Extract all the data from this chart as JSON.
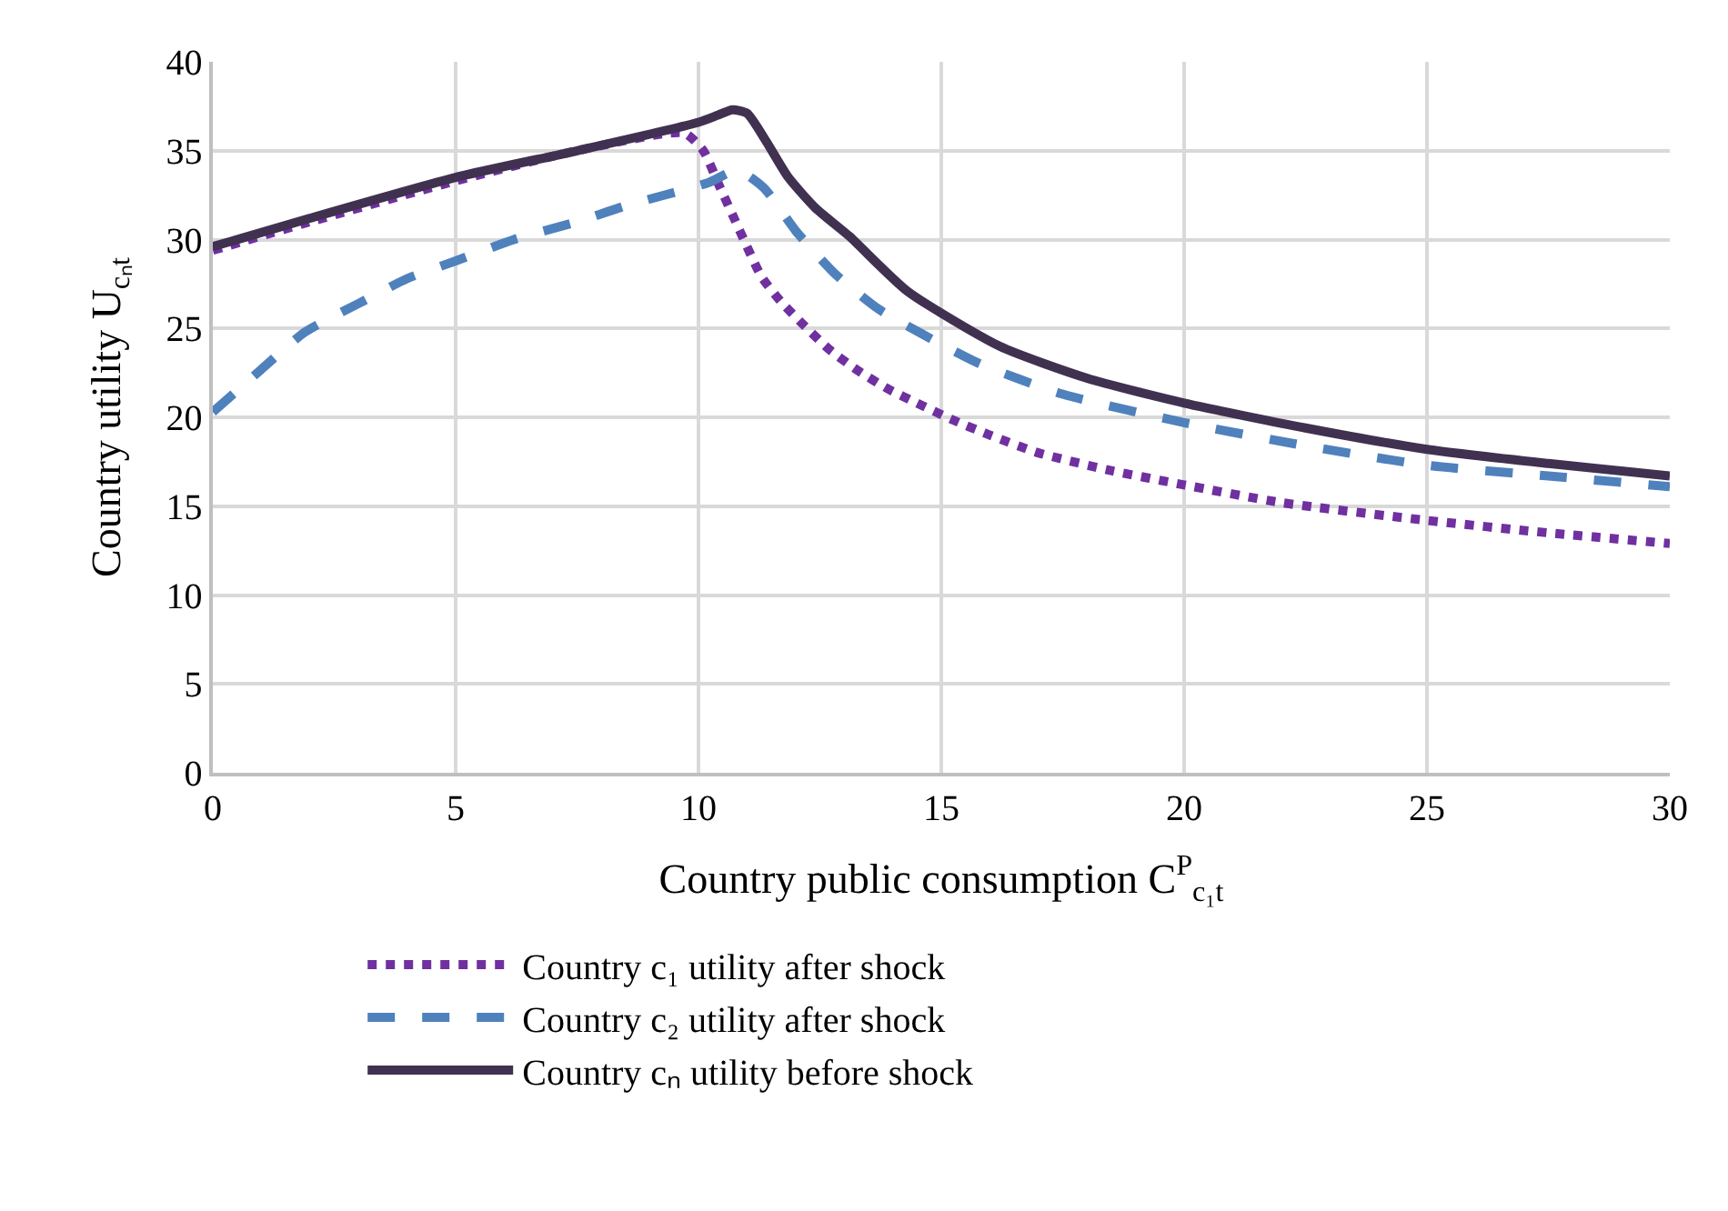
{
  "chart_data": {
    "type": "line",
    "xlabel": "Country public consumption C$^{P}$$_{c₁t}$",
    "ylabel": "Country utility U$_{cₙt}$",
    "xlim": [
      0,
      30
    ],
    "xticks": [
      0,
      5,
      10,
      15,
      20,
      25,
      30
    ],
    "ylim": [
      0,
      40
    ],
    "yticks": [
      0,
      5,
      10,
      15,
      20,
      25,
      30,
      35,
      40
    ],
    "grid": true,
    "legend": "bottom",
    "marker": "none",
    "series": [
      {
        "name": "Country c₁ utility after shock",
        "color": "#7030a0",
        "line_style": "dotted",
        "x": [
          0,
          2,
          5,
          7.5,
          9.7,
          10.1,
          10.4,
          10.7,
          11,
          11.3,
          11.7,
          12.2,
          12.7,
          13.3,
          13.9,
          14.5,
          15.2,
          16,
          17,
          18.5,
          20,
          22,
          25,
          27.5,
          30
        ],
        "values": [
          29.4,
          31,
          33.3,
          35,
          36,
          35,
          33.2,
          31.4,
          29.6,
          27.9,
          26.5,
          25.1,
          23.8,
          22.6,
          21.6,
          20.8,
          19.9,
          19,
          18,
          17,
          16.2,
          15.2,
          14.2,
          13.5,
          12.9
        ]
      },
      {
        "name": "Country c₂ utility after shock",
        "color": "#4f81bd",
        "line_style": "dashed",
        "x": [
          0,
          1,
          1.9,
          3,
          4,
          5,
          6.2,
          7.5,
          8.5,
          10.2,
          10.8,
          11.35,
          12,
          12.8,
          13.7,
          14.8,
          15.8,
          17.5,
          20,
          22.5,
          25,
          27.5,
          30
        ],
        "values": [
          20.3,
          22.7,
          24.8,
          26.4,
          27.8,
          28.8,
          30,
          31,
          31.9,
          33.2,
          33.9,
          32.9,
          30.5,
          28.1,
          26.1,
          24.4,
          23,
          21.3,
          19.7,
          18.4,
          17.3,
          16.7,
          16.1
        ]
      },
      {
        "name": "Country cₙ utility before shock",
        "color": "#403151",
        "line_style": "solid",
        "x": [
          0,
          2,
          5,
          7.5,
          10,
          10.4,
          10.7,
          11,
          11.4,
          11.85,
          12.4,
          13.1,
          14.3,
          16.2,
          18,
          20,
          22.5,
          25,
          27.5,
          30
        ],
        "values": [
          29.6,
          31.2,
          33.5,
          35,
          36.6,
          37,
          37.3,
          37.1,
          35.5,
          33.5,
          31.8,
          30.2,
          27.1,
          24,
          22.2,
          20.8,
          19.4,
          18.2,
          17.4,
          16.7
        ]
      }
    ]
  }
}
